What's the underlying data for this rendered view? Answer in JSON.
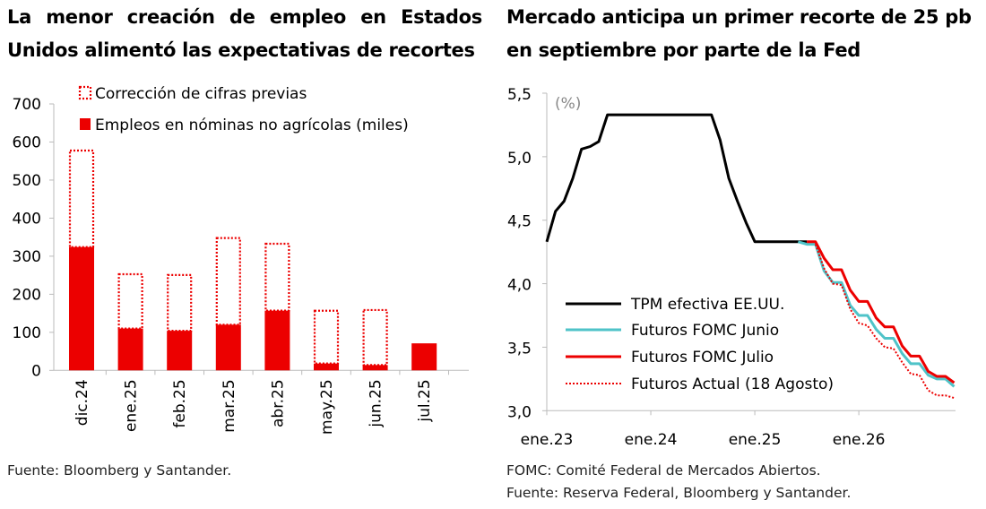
{
  "left": {
    "title": "La menor creación de empleo en Estados Unidos alimentó las expectativas de recortes",
    "source": "Fuente: Bloomberg y Santander."
  },
  "right": {
    "title": "Mercado anticipa un primer recorte de 25 pb en septiembre por parte de la Fed",
    "note1": "FOMC: Comité Federal de Mercados Abiertos.",
    "note2": "Fuente: Reserva Federal, Bloomberg y Santander."
  },
  "chart_data": [
    {
      "type": "bar",
      "categories": [
        "dic.24",
        "ene.25",
        "feb.25",
        "mar.25",
        "abr.25",
        "may.25",
        "jun.25",
        "jul.25"
      ],
      "series": [
        {
          "name": "Empleos en nóminas no agrícolas (miles)",
          "values": [
            324,
            110,
            104,
            120,
            157,
            18,
            14,
            71
          ],
          "color": "#ec0000",
          "style": "solid"
        },
        {
          "name": "Corrección de cifras previas",
          "top_values": [
            580,
            255,
            253,
            350,
            335,
            159,
            161,
            null
          ],
          "color": "#ec0000",
          "style": "dotted-outline"
        }
      ],
      "ylim": [
        0,
        700
      ],
      "yticks": [
        "0",
        "100",
        "200",
        "300",
        "400",
        "500",
        "600",
        "700"
      ],
      "legend": "top",
      "grid": false
    },
    {
      "type": "line",
      "ylabel": "(%)",
      "ylim": [
        3.0,
        5.5
      ],
      "yticks": [
        "3,0",
        "3,5",
        "4,0",
        "4,5",
        "5,0",
        "5,5"
      ],
      "xticks": [
        "ene.23",
        "ene.24",
        "ene.25",
        "ene.26"
      ],
      "xlim": [
        "2023-01",
        "2026-12"
      ],
      "legend": "bottom-left",
      "grid": false,
      "series": [
        {
          "name": "TPM efectiva EE.UU.",
          "color": "#000000",
          "style": "solid",
          "x": [
            "2023-01",
            "2023-02",
            "2023-03",
            "2023-04",
            "2023-05",
            "2023-06",
            "2023-07",
            "2023-08",
            "2024-08",
            "2024-09",
            "2024-10",
            "2024-11",
            "2024-12",
            "2025-01",
            "2025-07"
          ],
          "y": [
            4.33,
            4.57,
            4.65,
            4.83,
            5.06,
            5.08,
            5.12,
            5.33,
            5.33,
            5.13,
            4.83,
            4.65,
            4.48,
            4.33,
            4.33
          ]
        },
        {
          "name": "Futuros FOMC Junio",
          "color": "#4fc3c8",
          "style": "solid",
          "x": [
            "2025-06",
            "2025-07",
            "2025-08",
            "2025-09",
            "2025-10",
            "2025-11",
            "2025-12",
            "2026-01",
            "2026-02",
            "2026-03",
            "2026-04",
            "2026-05",
            "2026-06",
            "2026-07",
            "2026-08",
            "2026-09",
            "2026-10",
            "2026-11",
            "2026-12"
          ],
          "y": [
            4.33,
            4.31,
            4.31,
            4.1,
            4.01,
            4.01,
            3.83,
            3.75,
            3.75,
            3.64,
            3.57,
            3.57,
            3.45,
            3.37,
            3.37,
            3.28,
            3.25,
            3.25,
            3.19
          ]
        },
        {
          "name": "Futuros FOMC Julio",
          "color": "#ec0000",
          "style": "solid",
          "x": [
            "2025-07",
            "2025-08",
            "2025-09",
            "2025-10",
            "2025-11",
            "2025-12",
            "2026-01",
            "2026-02",
            "2026-03",
            "2026-04",
            "2026-05",
            "2026-06",
            "2026-07",
            "2026-08",
            "2026-09",
            "2026-10",
            "2026-11",
            "2026-12"
          ],
          "y": [
            4.33,
            4.33,
            4.2,
            4.11,
            4.11,
            3.95,
            3.86,
            3.86,
            3.73,
            3.66,
            3.66,
            3.51,
            3.43,
            3.43,
            3.31,
            3.27,
            3.27,
            3.22
          ]
        },
        {
          "name": "Futuros Actual (18 Agosto)",
          "color": "#ec0000",
          "style": "dotted",
          "x": [
            "2025-08",
            "2025-09",
            "2025-10",
            "2025-11",
            "2025-12",
            "2026-01",
            "2026-02",
            "2026-03",
            "2026-04",
            "2026-05",
            "2026-06",
            "2026-07",
            "2026-08",
            "2026-09",
            "2026-10",
            "2026-11",
            "2026-12"
          ],
          "y": [
            4.31,
            4.12,
            4.0,
            3.99,
            3.8,
            3.69,
            3.67,
            3.57,
            3.5,
            3.49,
            3.38,
            3.29,
            3.28,
            3.16,
            3.12,
            3.12,
            3.1
          ]
        }
      ]
    }
  ]
}
